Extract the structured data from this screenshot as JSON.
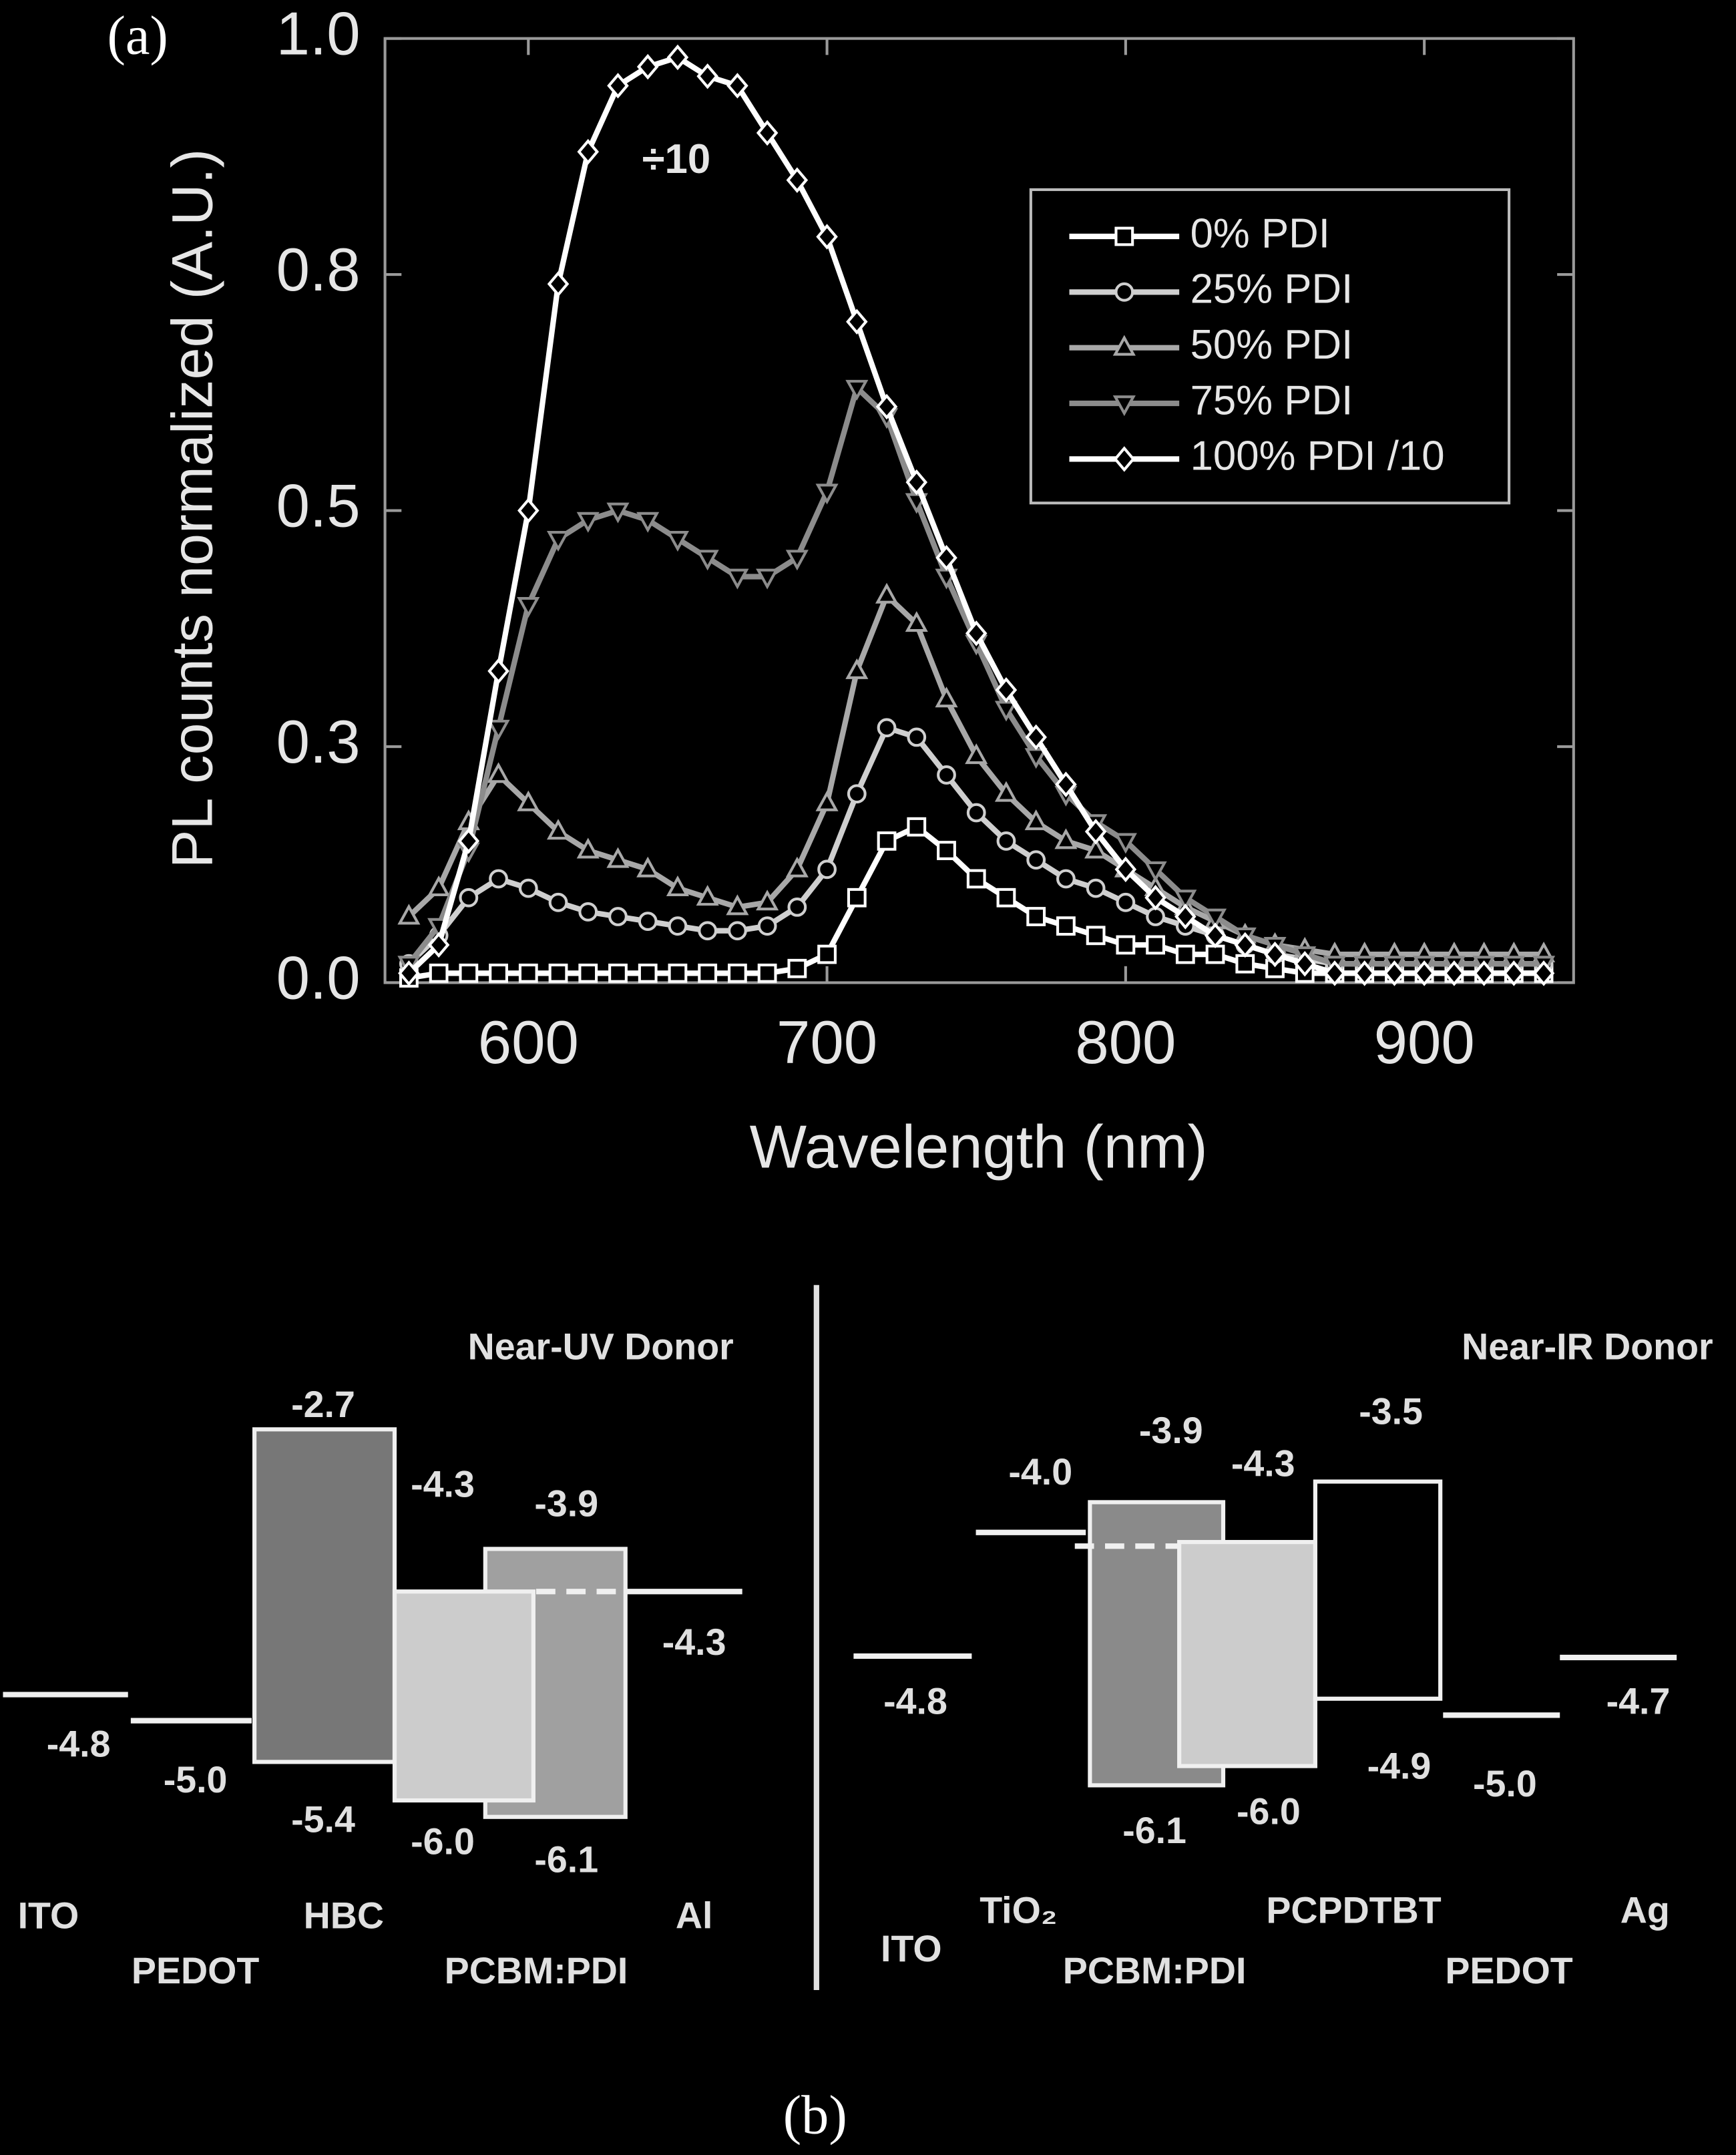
{
  "chart_data": {
    "type": "line",
    "panel_label": "(a)",
    "x_label": "Wavelength (nm)",
    "y_label": "PL counts normalized (A.U.)",
    "annotation": "÷10",
    "xlim": [
      552,
      950
    ],
    "ylim": [
      0,
      1.0
    ],
    "xticks": [
      600,
      700,
      800,
      900
    ],
    "yticks": [
      {
        "value": 0,
        "label": "0.0"
      },
      {
        "value": 0.25,
        "label": "0.3"
      },
      {
        "value": 0.5,
        "label": "0.5"
      },
      {
        "value": 0.75,
        "label": "0.8"
      },
      {
        "value": 1.0,
        "label": "1.0"
      }
    ],
    "grid": false,
    "legend": "upper right",
    "x": [
      560,
      570,
      580,
      590,
      600,
      610,
      620,
      630,
      640,
      650,
      660,
      670,
      680,
      690,
      700,
      710,
      720,
      730,
      740,
      750,
      760,
      770,
      780,
      790,
      800,
      810,
      820,
      830,
      840,
      850,
      860,
      870,
      880,
      890,
      900,
      910,
      920,
      930,
      940
    ],
    "series": [
      {
        "name": "0% PDI",
        "color": "#ffffff",
        "marker": "square",
        "values": [
          0.005,
          0.01,
          0.01,
          0.01,
          0.01,
          0.01,
          0.01,
          0.01,
          0.01,
          0.01,
          0.01,
          0.01,
          0.01,
          0.015,
          0.03,
          0.09,
          0.15,
          0.165,
          0.14,
          0.11,
          0.09,
          0.07,
          0.06,
          0.05,
          0.04,
          0.04,
          0.03,
          0.03,
          0.02,
          0.015,
          0.01,
          0.01,
          0.01,
          0.01,
          0.01,
          0.01,
          0.01,
          0.01,
          0.01
        ]
      },
      {
        "name": "25% PDI",
        "color": "#cfcfcf",
        "marker": "circle",
        "values": [
          0.02,
          0.05,
          0.09,
          0.11,
          0.1,
          0.085,
          0.075,
          0.07,
          0.065,
          0.06,
          0.055,
          0.055,
          0.06,
          0.08,
          0.12,
          0.2,
          0.27,
          0.26,
          0.22,
          0.18,
          0.15,
          0.13,
          0.11,
          0.1,
          0.085,
          0.07,
          0.06,
          0.05,
          0.04,
          0.03,
          0.025,
          0.02,
          0.02,
          0.02,
          0.02,
          0.02,
          0.02,
          0.02,
          0.02
        ]
      },
      {
        "name": "50% PDI",
        "color": "#a8a8a8",
        "marker": "triangle-up",
        "values": [
          0.07,
          0.1,
          0.17,
          0.22,
          0.19,
          0.16,
          0.14,
          0.13,
          0.12,
          0.1,
          0.09,
          0.08,
          0.085,
          0.12,
          0.19,
          0.33,
          0.41,
          0.38,
          0.3,
          0.24,
          0.2,
          0.17,
          0.15,
          0.14,
          0.12,
          0.1,
          0.08,
          0.065,
          0.05,
          0.04,
          0.035,
          0.03,
          0.03,
          0.03,
          0.03,
          0.03,
          0.03,
          0.03,
          0.03
        ]
      },
      {
        "name": "75% PDI",
        "color": "#8c8c8c",
        "marker": "triangle-down",
        "values": [
          0.02,
          0.06,
          0.14,
          0.27,
          0.4,
          0.47,
          0.49,
          0.5,
          0.49,
          0.47,
          0.45,
          0.43,
          0.43,
          0.45,
          0.52,
          0.63,
          0.6,
          0.51,
          0.43,
          0.36,
          0.29,
          0.24,
          0.2,
          0.17,
          0.15,
          0.12,
          0.09,
          0.07,
          0.05,
          0.04,
          0.03,
          0.02,
          0.02,
          0.02,
          0.02,
          0.02,
          0.02,
          0.02,
          0.02
        ]
      },
      {
        "name": "100% PDI /10",
        "color": "#ffffff",
        "marker": "diamond",
        "values": [
          0.01,
          0.04,
          0.15,
          0.33,
          0.5,
          0.74,
          0.88,
          0.95,
          0.97,
          0.98,
          0.96,
          0.95,
          0.9,
          0.85,
          0.79,
          0.7,
          0.61,
          0.53,
          0.45,
          0.37,
          0.31,
          0.26,
          0.21,
          0.16,
          0.12,
          0.09,
          0.07,
          0.05,
          0.04,
          0.03,
          0.02,
          0.01,
          0.01,
          0.01,
          0.01,
          0.01,
          0.01,
          0.01,
          0.01
        ]
      }
    ]
  },
  "panel_b_label": "(b)",
  "diagrams": [
    {
      "title": "Near-UV Donor",
      "materials": [
        "ITO",
        "PEDOT",
        "HBC",
        "PCBM:PDI",
        "Al"
      ],
      "levels": [
        "-4.8",
        "-5.0",
        "-2.7",
        "-5.4",
        "-4.3",
        "-6.0",
        "-3.9",
        "-6.1",
        "-4.3"
      ]
    },
    {
      "title": "Near-IR Donor",
      "materials": [
        "ITO",
        "TiO₂",
        "PCBM:PDI",
        "PCPDTBT",
        "PEDOT",
        "Ag"
      ],
      "levels": [
        "-4.8",
        "-4.0",
        "-3.9",
        "-6.1",
        "-4.3",
        "-6.0",
        "-3.5",
        "-4.9",
        "-5.0",
        "-4.7"
      ]
    }
  ]
}
